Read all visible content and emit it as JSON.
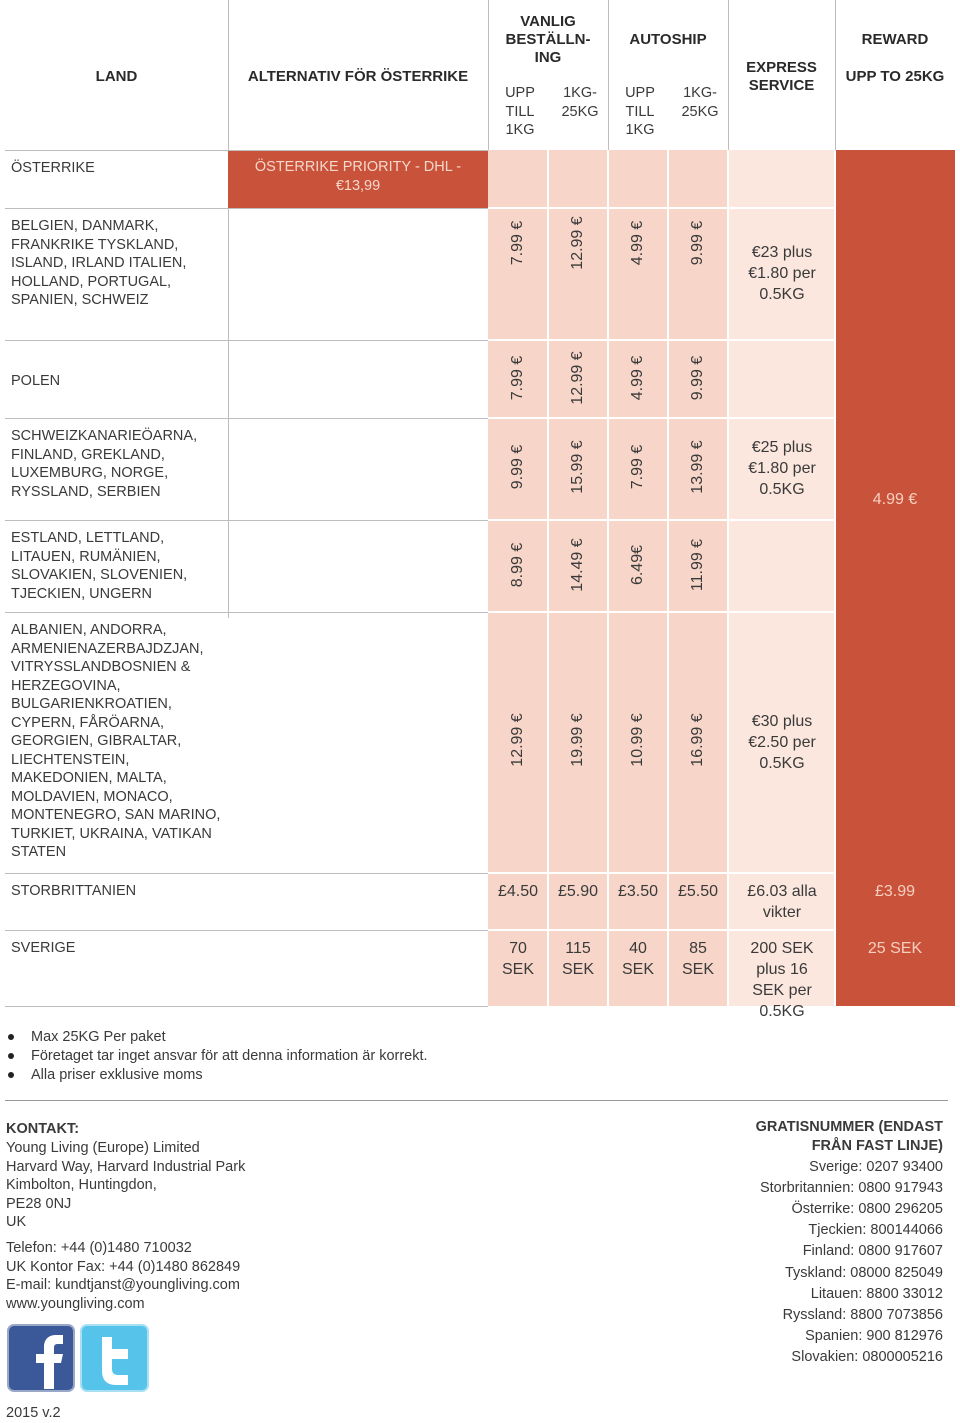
{
  "table": {
    "headers": {
      "land": "LAND",
      "alternative": "ALTERNATIV FÖR ÖSTERRIKE",
      "regular": "VANLIG BESTÄLLN-ING",
      "autoship": "AUTOSHIP",
      "express": "EXPRESS SERVICE",
      "reward": "REWARD",
      "reward_sub": "UPP TO 25KG",
      "sub": [
        "UPP TILL 1KG",
        "1KG-25KG",
        "UPP TILL 1KG",
        "1KG-25KG"
      ]
    },
    "rows": [
      {
        "land": "ÖSTERRIKE",
        "alternative": "ÖSTERRIKE PRIORITY - DHL - €13,99",
        "prices": []
      },
      {
        "land": "BELGIEN, DANMARK, FRANKRIKE TYSKLAND, ISLAND, IRLAND ITALIEN, HOLLAND, PORTUGAL, SPANIEN, SCHWEIZ",
        "prices": [
          "7.99 €",
          "12.99 €",
          "4.99 €",
          "9.99 €"
        ],
        "express": "€23 plus €1.80 per 0.5KG"
      },
      {
        "land": "POLEN",
        "prices": [
          "7.99 €",
          "12.99 €",
          "4.99 €",
          "9.99 €"
        ]
      },
      {
        "land": "SCHWEIZKANARIEÖARNA, FINLAND, GREKLAND, LUXEMBURG, NORGE, RYSSLAND, SERBIEN",
        "prices": [
          "9.99 €",
          "15.99 €",
          "7.99 €",
          "13.99 €"
        ],
        "express": "€25 plus €1.80 per 0.5KG"
      },
      {
        "land": "ESTLAND, LETTLAND, LITAUEN, RUMÄNIEN, SLOVAKIEN, SLOVENIEN, TJECKIEN, UNGERN",
        "prices": [
          "8.99 €",
          "14.49 €",
          "6.49€",
          "11.99 €"
        ]
      },
      {
        "land": "ALBANIEN, ANDORRA, ARMENIENAZERBAJDZJAN, VITRYSSLANDBOSNIEN & HERZEGOVINA, BULGARIENKROATIEN, CYPERN, FÅRÖARNA, GEORGIEN, GIBRALTAR, LIECHTENSTEIN, MAKEDONIEN, MALTA, MOLDAVIEN, MONACO, MONTENEGRO, SAN MARINO, TURKIET, UKRAINA, VATIKAN STATEN",
        "prices": [
          "12.99 €",
          "19.99 €",
          "10.99 €",
          "16.99 €"
        ],
        "express": "€30 plus €2.50 per 0.5KG"
      },
      {
        "land": "STORBRITTANIEN",
        "prices": [
          "£4.50",
          "£5.90",
          "£3.50",
          "£5.50"
        ],
        "express": "£6.03 alla vikter",
        "reward": "£3.99"
      },
      {
        "land": "SVERIGE",
        "prices": [
          "70 SEK",
          "115 SEK",
          "40 SEK",
          "85 SEK"
        ],
        "express": "200 SEK plus 16 SEK per 0.5KG",
        "reward": "25 SEK"
      }
    ],
    "reward_europe": "4.99 €"
  },
  "notes": [
    "Max 25KG Per paket",
    "Företaget tar inget ansvar för att denna information är korrekt.",
    "Alla priser exklusive moms"
  ],
  "contact": {
    "title": "KONTAKT:",
    "address": [
      "Young Living (Europe) Limited",
      "Harvard Way, Harvard Industrial Park",
      "Kimbolton, Huntingdon,",
      "PE28 0NJ",
      "UK"
    ],
    "lines": [
      "Telefon: +44 (0)1480 710032",
      "UK Kontor Fax: +44 (0)1480 862849",
      "E-mail: kundtjanst@youngliving.com",
      "www.youngliving.com"
    ]
  },
  "freephone": {
    "title": "GRATISNUMMER (ENDAST FRÅN FAST LINJE)",
    "lines": [
      "Sverige: 0207 93400",
      "Storbritannien: 0800 917943",
      "Österrike: 0800 296205",
      "Tjeckien: 800144066",
      "Finland: 0800 917607",
      "Tyskland: 08000 825049",
      "Litauen: 8800 33012",
      "Ryssland: 8800 7073856",
      "Spanien: 900 812976",
      "Slovakien: 0800005216"
    ]
  },
  "version": "2015 v.2"
}
